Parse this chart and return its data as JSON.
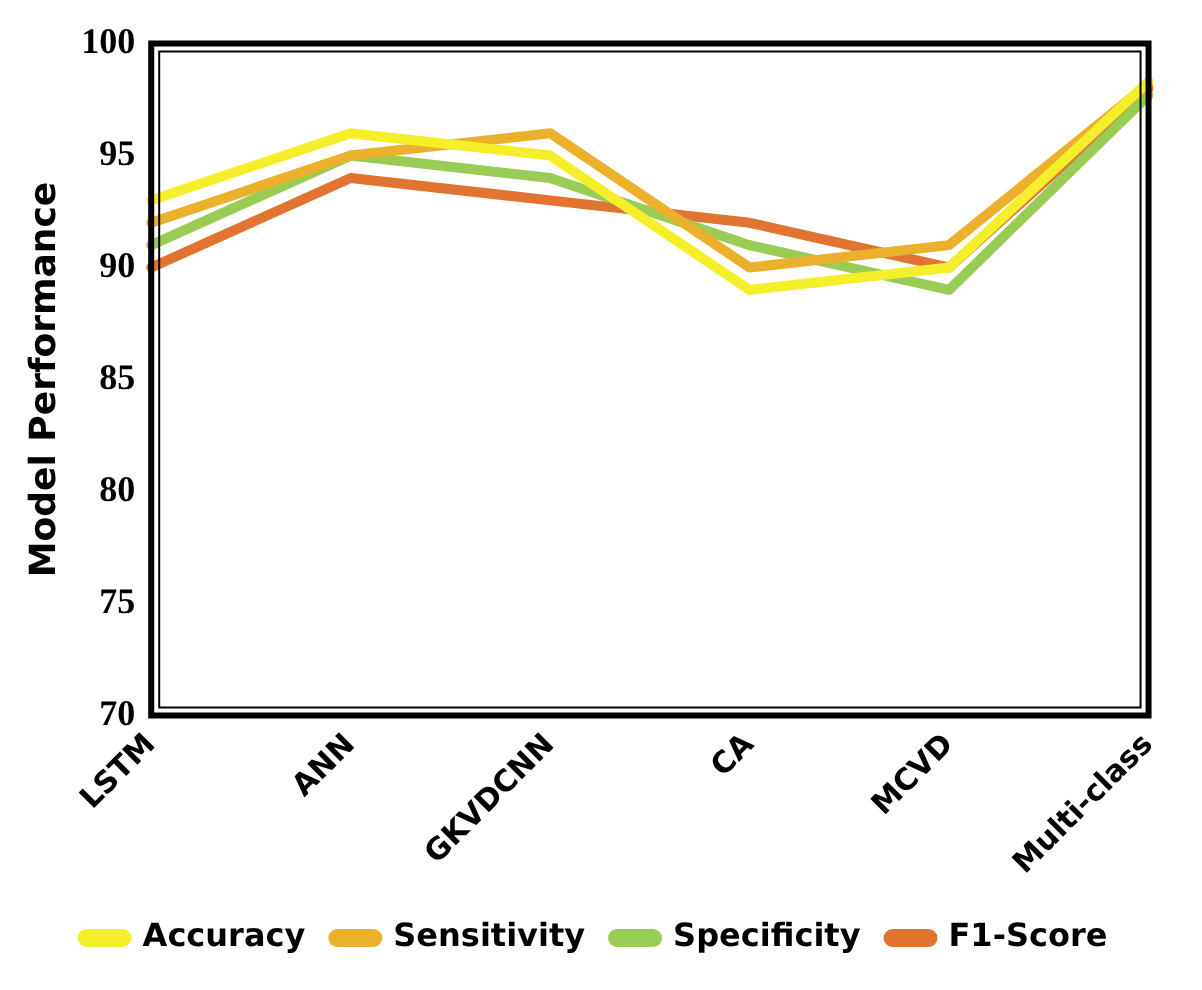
{
  "chart_data": {
    "type": "line",
    "ylabel": "Model Performance",
    "categories": [
      "LSTM",
      "ANN",
      "GKVDCNN",
      "CA",
      "MCVD",
      "Multi-class"
    ],
    "series": [
      {
        "name": "Accuracy",
        "color": "#f5ee2a",
        "values": [
          93,
          96,
          95,
          89,
          90,
          98.3
        ]
      },
      {
        "name": "Sensitivity",
        "color": "#ebb02c",
        "values": [
          92,
          95,
          96,
          90,
          91,
          98.2
        ]
      },
      {
        "name": "Specificity",
        "color": "#99cc55",
        "values": [
          91,
          95,
          94,
          91,
          89,
          97.7
        ]
      },
      {
        "name": "F1-Score",
        "color": "#e07430",
        "values": [
          90,
          94,
          93,
          92,
          90,
          98
        ]
      }
    ],
    "ylim": [
      70,
      100
    ],
    "yticks": [
      70,
      75,
      80,
      85,
      90,
      95,
      100
    ],
    "grid": false,
    "legend": "bottom",
    "marker": "none",
    "line_style": "solid"
  }
}
